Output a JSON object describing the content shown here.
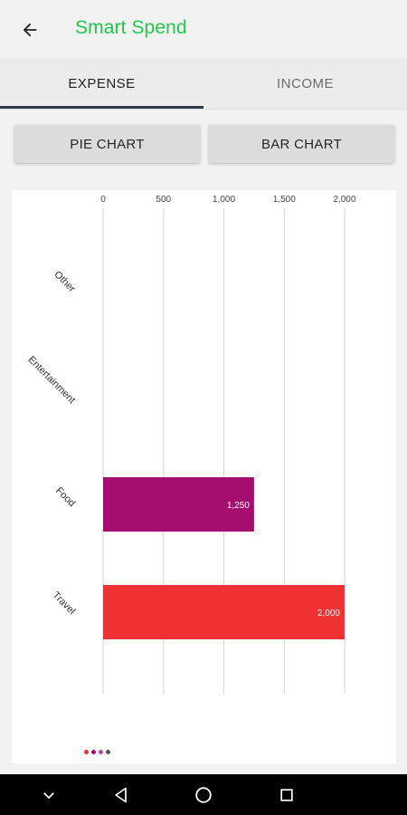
{
  "app": {
    "title": "Smart Spend"
  },
  "tabs": [
    {
      "label": "EXPENSE",
      "active": true
    },
    {
      "label": "INCOME",
      "active": false
    }
  ],
  "buttons": {
    "pie": "PIE CHART",
    "bar": "BAR CHART"
  },
  "icons": {
    "back": "arrow-left-icon",
    "nav_down": "chevron-down-icon",
    "nav_back": "triangle-back-icon",
    "nav_home": "circle-home-icon",
    "nav_recent": "square-recents-icon"
  },
  "colors": {
    "title": "#22c84a",
    "tab_indicator": "#2e3b4e",
    "food_bar": "#a50d6e",
    "travel_bar": "#ee3233"
  },
  "chart_data": {
    "type": "bar",
    "orientation": "horizontal",
    "categories": [
      "Other",
      "Entertainment",
      "Food",
      "Travel"
    ],
    "values": [
      0,
      0,
      1250,
      2000
    ],
    "value_labels": [
      "",
      "",
      "1,250",
      "2,000"
    ],
    "colors": [
      "#888888",
      "#888888",
      "#a50d6e",
      "#ee3233"
    ],
    "xlim": [
      0,
      2000
    ],
    "x_ticks": [
      0,
      500,
      1000,
      1500,
      2000
    ],
    "x_tick_labels": [
      "0",
      "500",
      "1,000",
      "1,500",
      "2,000"
    ],
    "grid": true,
    "axis_position": "top"
  },
  "pager": {
    "dots": [
      "#ee3233",
      "#a50d6e",
      "#cc44aa",
      "#555555"
    ]
  }
}
